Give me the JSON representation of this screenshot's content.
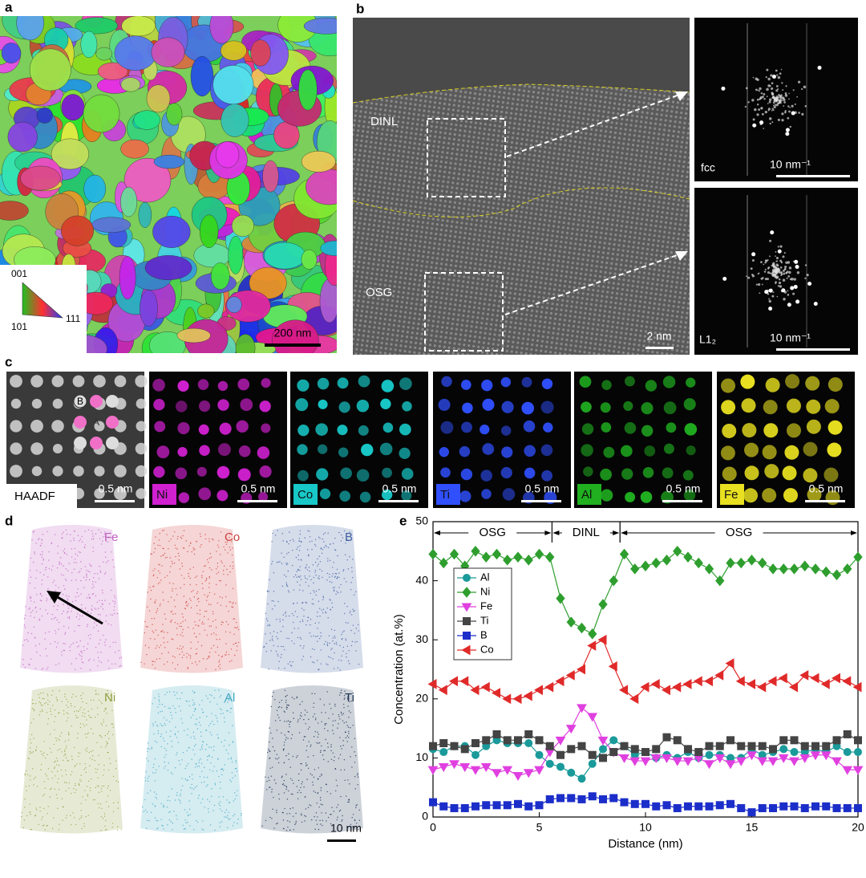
{
  "panel_a": {
    "label": "a",
    "ipf_labels": [
      "001",
      "101",
      "111"
    ],
    "scale_bar": "200 nm"
  },
  "panel_b": {
    "label": "b",
    "regions": [
      "DINL",
      "OSG"
    ],
    "scale_bar": "2 nm",
    "fft": [
      {
        "phase": "fcc",
        "scale_bar": "10 nm⁻¹"
      },
      {
        "phase": "L1₂",
        "scale_bar": "10 nm⁻¹"
      }
    ]
  },
  "panel_c": {
    "label": "c",
    "site_labels": [
      "B",
      "A"
    ],
    "maps": [
      {
        "name": "HAADF",
        "scale_bar": "0.5 nm",
        "color": "#d8d8d8"
      },
      {
        "name": "Ni",
        "scale_bar": "0.5 nm",
        "color": "#d020d0"
      },
      {
        "name": "Co",
        "scale_bar": "0.5 nm",
        "color": "#18c8c8"
      },
      {
        "name": "Ti",
        "scale_bar": "0.5 nm",
        "color": "#3050ff"
      },
      {
        "name": "Al",
        "scale_bar": "0.5 nm",
        "color": "#20b020"
      },
      {
        "name": "Fe",
        "scale_bar": "0.5 nm",
        "color": "#e8e020"
      }
    ]
  },
  "panel_d": {
    "label": "d",
    "scale_bar": "10 nm",
    "elements": [
      {
        "name": "Fe",
        "color": "#c060c0"
      },
      {
        "name": "Co",
        "color": "#d04040"
      },
      {
        "name": "B",
        "color": "#4060a0"
      },
      {
        "name": "Ni",
        "color": "#8fa040"
      },
      {
        "name": "Al",
        "color": "#40a8c0"
      },
      {
        "name": "Ti",
        "color": "#1a3050"
      }
    ]
  },
  "chart_data": {
    "type": "line",
    "label": "e",
    "x_label": "Distance (nm)",
    "y_label": "Concentration (at.%)",
    "xlim": [
      0,
      20
    ],
    "xticks": [
      0,
      5,
      10,
      15,
      20
    ],
    "ylim": [
      0,
      50
    ],
    "yticks": [
      0,
      10,
      20,
      30,
      40,
      50
    ],
    "regions": [
      {
        "label": "OSG",
        "start": 0,
        "end": 5.6
      },
      {
        "label": "DINL",
        "start": 5.6,
        "end": 8.8
      },
      {
        "label": "OSG",
        "start": 8.8,
        "end": 20
      }
    ],
    "x": [
      0,
      0.5,
      1,
      1.5,
      2,
      2.5,
      3,
      3.5,
      4,
      4.5,
      5,
      5.5,
      6,
      6.5,
      7,
      7.5,
      8,
      8.5,
      9,
      9.5,
      10,
      10.5,
      11,
      11.5,
      12,
      12.5,
      13,
      13.5,
      14,
      14.5,
      15,
      15.5,
      16,
      16.5,
      17,
      17.5,
      18,
      18.5,
      19,
      19.5,
      20
    ],
    "series": [
      {
        "name": "Al",
        "color": "#1a9a9a",
        "marker": "circle",
        "values": [
          11.5,
          11,
          12,
          12,
          10.5,
          12,
          13,
          12.5,
          12.5,
          12.5,
          10.5,
          9,
          8.5,
          7.5,
          6.5,
          9,
          11.5,
          13,
          12,
          10.5,
          11,
          10,
          10.5,
          10,
          11,
          10,
          10.5,
          10.5,
          10,
          10,
          11.5,
          10.5,
          11,
          11.5,
          11,
          11,
          11.5,
          11,
          12,
          11,
          11
        ]
      },
      {
        "name": "Ni",
        "color": "#2e9e2e",
        "marker": "diamond",
        "values": [
          44.5,
          43,
          44.5,
          42.5,
          45,
          44,
          44.5,
          43.5,
          44,
          43.5,
          44.5,
          44,
          37,
          33,
          32,
          31,
          36,
          40,
          44.5,
          42,
          42.5,
          43,
          43.5,
          45,
          44,
          43,
          42,
          40,
          43,
          43,
          43.5,
          43,
          42,
          42,
          42,
          42.5,
          42,
          41.5,
          41,
          42,
          44
        ]
      },
      {
        "name": "Fe",
        "color": "#e040e0",
        "marker": "tri-down",
        "values": [
          8,
          8.5,
          9,
          8.5,
          8,
          8.5,
          7.5,
          8,
          7,
          7.5,
          8,
          11,
          13,
          15,
          18.5,
          17,
          13,
          11,
          10,
          9.5,
          9.5,
          10,
          10,
          9.5,
          9.5,
          10,
          9,
          10,
          9,
          9.5,
          10.5,
          9.5,
          9.5,
          10,
          9.5,
          10,
          10.5,
          10.5,
          9.5,
          8,
          8
        ]
      },
      {
        "name": "Ti",
        "color": "#444444",
        "marker": "square",
        "values": [
          12,
          12.5,
          12,
          11.5,
          12.5,
          13,
          14,
          13,
          13,
          14,
          13,
          12,
          10.5,
          11.5,
          12,
          10.5,
          10,
          11,
          12,
          11.5,
          11,
          11.5,
          13.5,
          13,
          11.5,
          11,
          12,
          12,
          13,
          12,
          12,
          12,
          11.5,
          13,
          13,
          12,
          12,
          12,
          13,
          14,
          13
        ]
      },
      {
        "name": "B",
        "color": "#1c2ec9",
        "marker": "square",
        "values": [
          2.5,
          1.8,
          1.5,
          1.5,
          1.8,
          2,
          2,
          2,
          2.2,
          1.8,
          2,
          3,
          3.2,
          3.2,
          3,
          3.5,
          3,
          3.2,
          2.5,
          2.2,
          2.2,
          1.8,
          2,
          1.5,
          1.8,
          1.8,
          1.8,
          2,
          2.2,
          1.5,
          0.8,
          1.5,
          1.5,
          1.8,
          1.8,
          1.5,
          1.8,
          1.8,
          1.5,
          1.5,
          1.5
        ]
      },
      {
        "name": "Co",
        "color": "#e02a2a",
        "marker": "tri-left",
        "values": [
          22.5,
          21.5,
          23,
          23,
          21.5,
          22,
          21,
          20,
          20,
          20.5,
          21.5,
          22,
          23,
          24,
          25,
          29,
          30,
          25.5,
          21.5,
          20,
          22,
          22.5,
          21.5,
          22,
          22.5,
          23,
          23,
          24,
          26,
          23,
          22.5,
          22,
          23,
          23.5,
          22,
          24,
          23.5,
          22.5,
          23.5,
          23,
          22
        ]
      }
    ]
  }
}
